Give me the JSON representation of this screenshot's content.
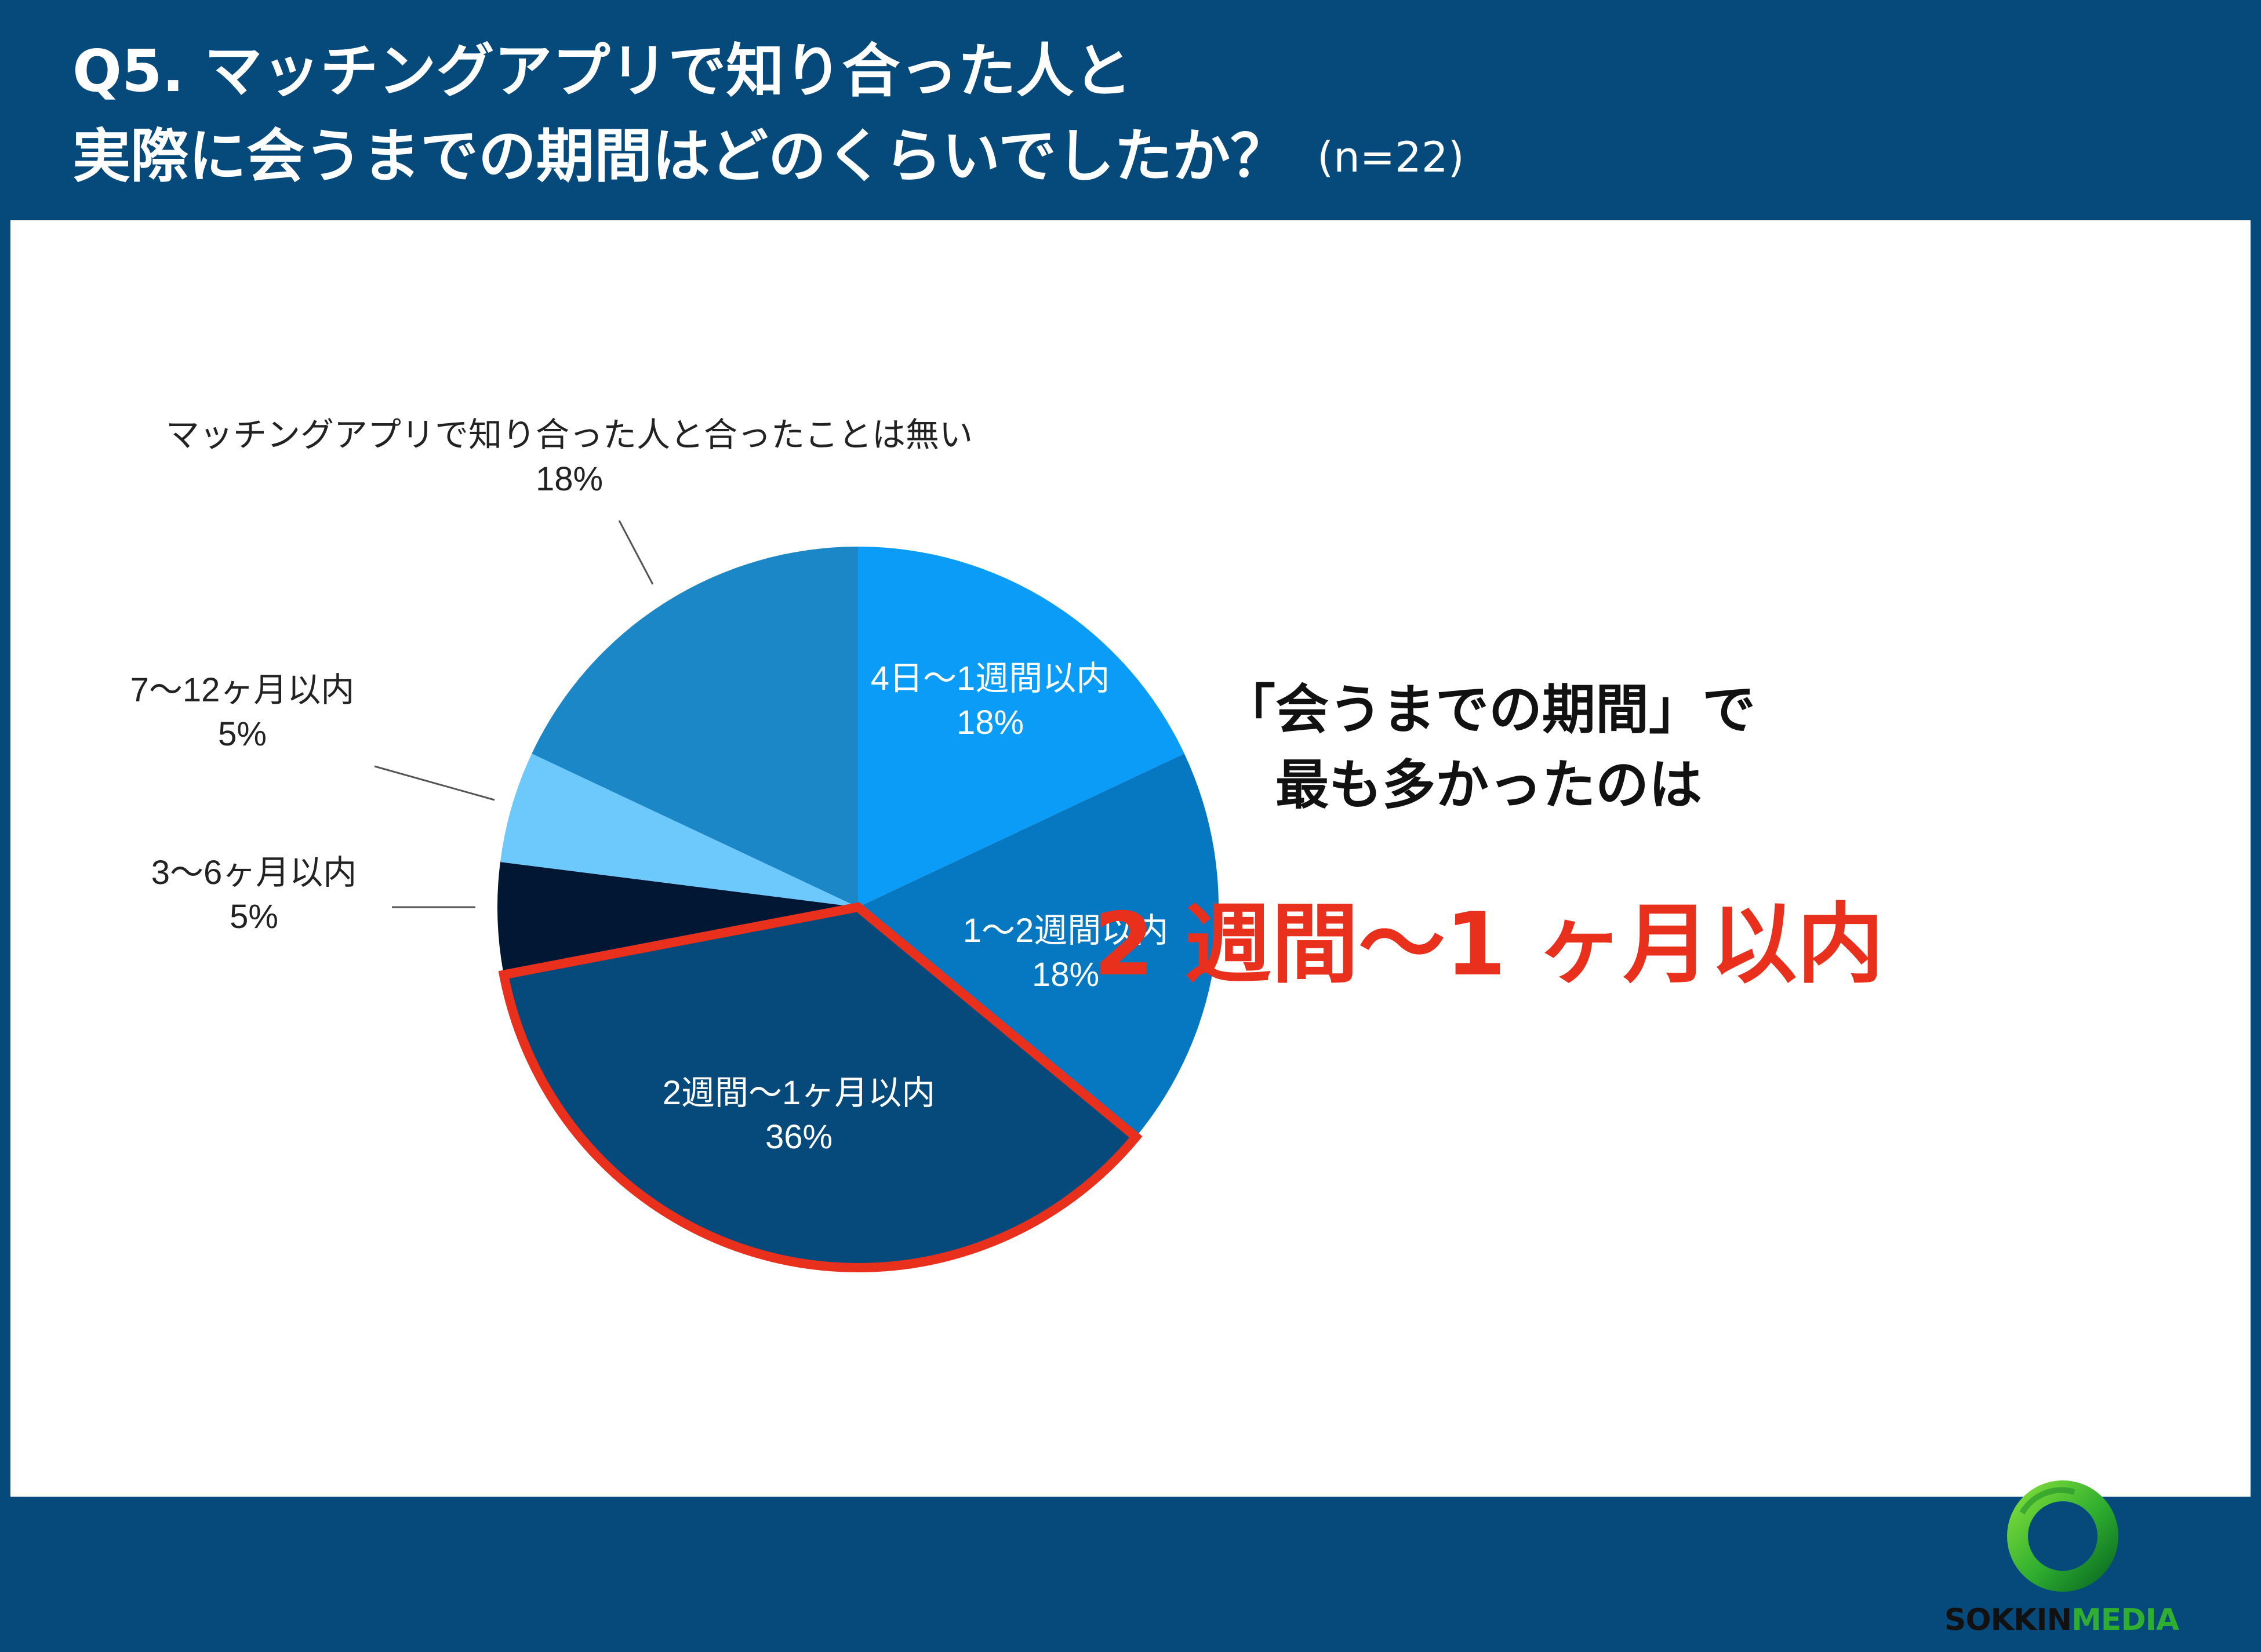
{
  "title": {
    "line1": "Q5. マッチングアプリで知り合った人と",
    "line2": "実際に会うまでの期間はどのくらいでしたか？",
    "sample_size": "(n=22)"
  },
  "chart_data": {
    "type": "pie",
    "title": "Q5. マッチングアプリで知り合った人と実際に会うまでの期間はどのくらいでしたか？",
    "n": 22,
    "slices": [
      {
        "label": "4日〜1週間以内",
        "value": 18,
        "value_label": "18%",
        "color": "#0a9cf6",
        "label_placement": "inside",
        "highlight": false
      },
      {
        "label": "1〜2週間以内",
        "value": 18,
        "value_label": "18%",
        "color": "#0678c2",
        "label_placement": "inside",
        "highlight": false
      },
      {
        "label": "2週間〜1ヶ月以内",
        "value": 36,
        "value_label": "36%",
        "color": "#064a7c",
        "label_placement": "inside",
        "highlight": true
      },
      {
        "label": "3〜6ヶ月以内",
        "value": 5,
        "value_label": "5%",
        "color": "#021733",
        "label_placement": "outside",
        "highlight": false
      },
      {
        "label": "7〜12ヶ月以内",
        "value": 5,
        "value_label": "5%",
        "color": "#6dc8fc",
        "label_placement": "outside",
        "highlight": false
      },
      {
        "label": "マッチングアプリで知り合った人と合ったことは無い",
        "value": 18,
        "value_label": "18%",
        "color": "#1b87c6",
        "label_placement": "outside",
        "highlight": false
      }
    ],
    "highlight_color": "#e8301c"
  },
  "callout": {
    "line1": "「会うまでの期間」で",
    "line2": "最も多かったのは",
    "highlight": "2 週間〜1 ヶ月以内",
    "highlight_color": "#e8301c"
  },
  "logo": {
    "word1": "SOKKIN",
    "word2": "MEDIA",
    "icon": "ring-logo-icon"
  }
}
